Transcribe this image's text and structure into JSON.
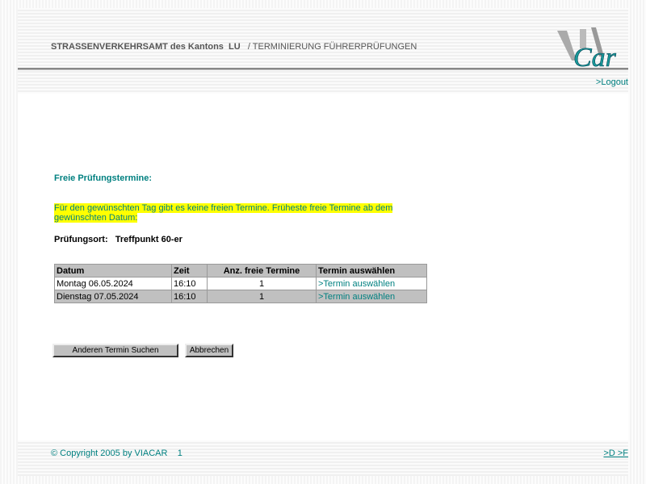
{
  "header": {
    "authority": "STRASSENVERKEHRSAMT des Kantons",
    "canton": "LU",
    "section": "/ TERMINIERUNG FÜHRERPRÜFUNGEN",
    "logo_text": "ViA Car"
  },
  "nav": {
    "logout": ">Logout"
  },
  "main": {
    "title": "Freie Prüfungstermine:",
    "message": "Für den gewünschten Tag gibt es keine freien Termine. Früheste freie Termine ab dem gewünschten Datum:",
    "location_label": "Prüfungsort:",
    "location_value": "Treffpunkt 60-er",
    "table": {
      "headers": [
        "Datum",
        "Zeit",
        "Anz. freie Termine",
        "Termin auswählen"
      ],
      "rows": [
        {
          "datum": "Montag 06.05.2024",
          "zeit": "16:10",
          "anzahl": "1",
          "link": ">Termin auswählen"
        },
        {
          "datum": "Dienstag 07.05.2024",
          "zeit": "16:10",
          "anzahl": "1",
          "link": ">Termin auswählen"
        }
      ]
    },
    "buttons": {
      "search": "Anderen Termin Suchen",
      "cancel": "Abbrechen"
    }
  },
  "footer": {
    "copyright": "© Copyright 2005 by VIACAR",
    "page": "1",
    "lang_links": ">D >F"
  },
  "colors": {
    "accent": "#008080",
    "highlight": "#ffff00",
    "table_gray": "#c0c0c0"
  }
}
